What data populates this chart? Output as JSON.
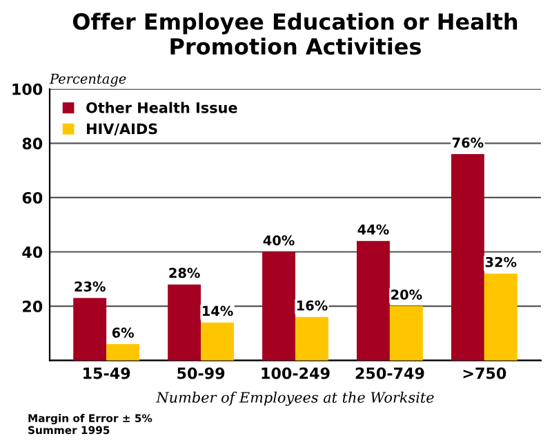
{
  "chart_data": {
    "type": "bar",
    "title": "Offer Employee Education or Health\nPromotion Activities",
    "ylabel": "Percentage",
    "xlabel": "Number of Employees at the Worksite",
    "categories": [
      "15-49",
      "50-99",
      "100-249",
      "250-749",
      ">750"
    ],
    "series": [
      {
        "name": "Other Health Issue",
        "color": "#a50021",
        "values": [
          23,
          28,
          40,
          44,
          76
        ],
        "value_labels": [
          "23%",
          "28%",
          "40%",
          "44%",
          "76%"
        ]
      },
      {
        "name": "HIV/AIDS",
        "color": "#ffc600",
        "values": [
          6,
          14,
          16,
          20,
          32
        ],
        "value_labels": [
          "6%",
          "14%",
          "16%",
          "20%",
          "32%"
        ]
      }
    ],
    "ylim": [
      0,
      100
    ],
    "yticks": [
      {
        "value": 0,
        "label": null
      },
      20,
      40,
      60,
      80,
      100
    ],
    "grid": "y",
    "legend": "top left",
    "annotations": [
      "Margin of Error ± 5%\nSummer 1995"
    ]
  }
}
